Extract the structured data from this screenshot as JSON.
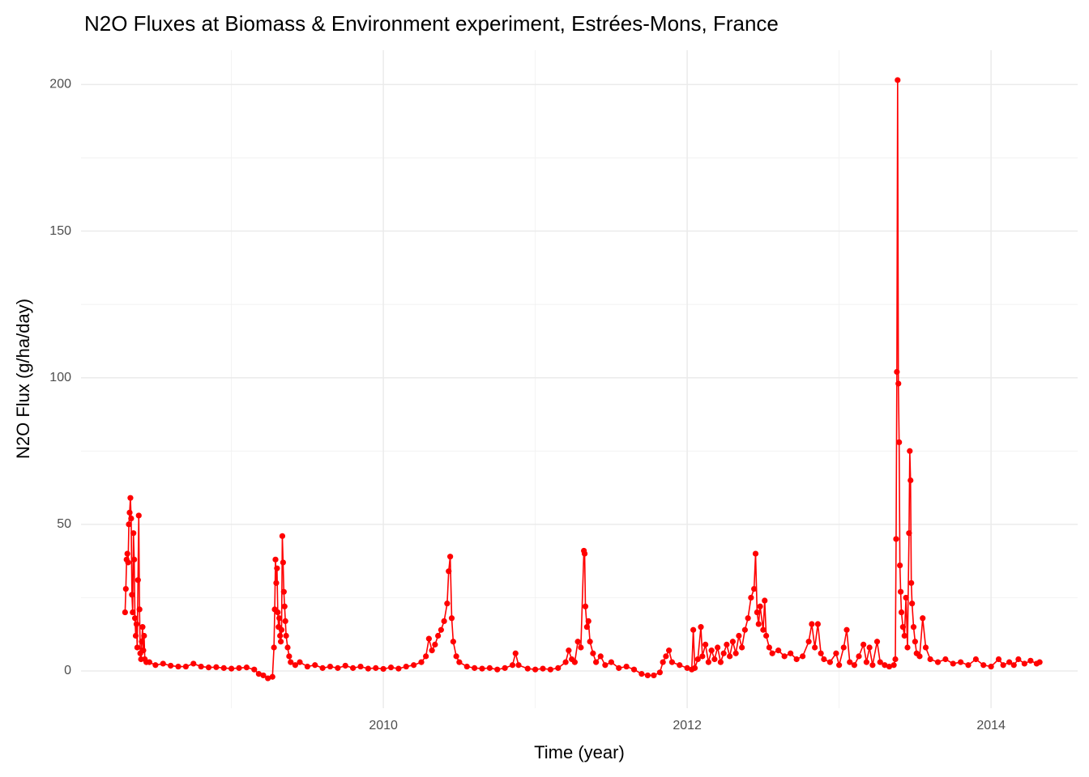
{
  "chart_data": {
    "type": "line",
    "title": "N2O Fluxes at Biomass & Environment experiment, Estrées-Mons, France",
    "x_label": "Time (year)",
    "y_label": "N2O Flux (g/ha/day)",
    "color": "#ff0000",
    "grid": true,
    "xlim": [
      2008.01,
      2014.57
    ],
    "xticks": [
      2010,
      2012,
      2014
    ],
    "ylim": [
      -12.7,
      211.7
    ],
    "yticks": [
      0,
      50,
      100,
      150,
      200
    ],
    "x": [
      2008.3,
      2008.305,
      2008.31,
      2008.315,
      2008.32,
      2008.325,
      2008.33,
      2008.335,
      2008.34,
      2008.345,
      2008.35,
      2008.355,
      2008.36,
      2008.365,
      2008.37,
      2008.375,
      2008.38,
      2008.385,
      2008.39,
      2008.395,
      2008.4,
      2008.405,
      2008.41,
      2008.415,
      2008.42,
      2008.425,
      2008.43,
      2008.44,
      2008.46,
      2008.5,
      2008.55,
      2008.6,
      2008.65,
      2008.7,
      2008.75,
      2008.8,
      2008.85,
      2008.9,
      2008.95,
      2009.0,
      2009.05,
      2009.1,
      2009.15,
      2009.18,
      2009.21,
      2009.24,
      2009.27,
      2009.28,
      2009.285,
      2009.29,
      2009.295,
      2009.3,
      2009.305,
      2009.31,
      2009.315,
      2009.32,
      2009.325,
      2009.33,
      2009.335,
      2009.34,
      2009.345,
      2009.35,
      2009.355,
      2009.36,
      2009.37,
      2009.38,
      2009.39,
      2009.42,
      2009.45,
      2009.5,
      2009.55,
      2009.6,
      2009.65,
      2009.7,
      2009.75,
      2009.8,
      2009.85,
      2009.9,
      2009.95,
      2010.0,
      2010.05,
      2010.1,
      2010.15,
      2010.2,
      2010.25,
      2010.28,
      2010.3,
      2010.32,
      2010.34,
      2010.36,
      2010.38,
      2010.4,
      2010.42,
      2010.43,
      2010.44,
      2010.45,
      2010.46,
      2010.48,
      2010.5,
      2010.55,
      2010.6,
      2010.65,
      2010.7,
      2010.75,
      2010.8,
      2010.85,
      2010.87,
      2010.89,
      2010.95,
      2011.0,
      2011.05,
      2011.1,
      2011.15,
      2011.2,
      2011.22,
      2011.24,
      2011.26,
      2011.28,
      2011.3,
      2011.32,
      2011.325,
      2011.33,
      2011.34,
      2011.35,
      2011.36,
      2011.38,
      2011.4,
      2011.43,
      2011.46,
      2011.5,
      2011.55,
      2011.6,
      2011.65,
      2011.7,
      2011.74,
      2011.78,
      2011.82,
      2011.84,
      2011.86,
      2011.88,
      2011.9,
      2011.95,
      2012.0,
      2012.03,
      2012.04,
      2012.05,
      2012.07,
      2012.09,
      2012.1,
      2012.12,
      2012.14,
      2012.16,
      2012.18,
      2012.2,
      2012.22,
      2012.24,
      2012.26,
      2012.28,
      2012.3,
      2012.32,
      2012.34,
      2012.36,
      2012.38,
      2012.4,
      2012.42,
      2012.44,
      2012.45,
      2012.46,
      2012.47,
      2012.48,
      2012.5,
      2012.51,
      2012.52,
      2012.54,
      2012.56,
      2012.6,
      2012.64,
      2012.68,
      2012.72,
      2012.76,
      2012.8,
      2012.82,
      2012.84,
      2012.86,
      2012.88,
      2012.9,
      2012.94,
      2012.98,
      2013.0,
      2013.03,
      2013.05,
      2013.07,
      2013.1,
      2013.13,
      2013.16,
      2013.18,
      2013.2,
      2013.22,
      2013.25,
      2013.27,
      2013.3,
      2013.33,
      2013.36,
      2013.37,
      2013.375,
      2013.38,
      2013.385,
      2013.39,
      2013.395,
      2013.4,
      2013.405,
      2013.41,
      2013.42,
      2013.43,
      2013.44,
      2013.45,
      2013.46,
      2013.465,
      2013.47,
      2013.475,
      2013.48,
      2013.49,
      2013.5,
      2013.51,
      2013.53,
      2013.55,
      2013.57,
      2013.6,
      2013.65,
      2013.7,
      2013.75,
      2013.8,
      2013.85,
      2013.9,
      2013.95,
      2014.0,
      2014.05,
      2014.08,
      2014.12,
      2014.15,
      2014.18,
      2014.22,
      2014.26,
      2014.3,
      2014.32
    ],
    "values": [
      20,
      28,
      38,
      40,
      37,
      50,
      54,
      59,
      52,
      26,
      20,
      47,
      38,
      18,
      12,
      16,
      8,
      31,
      53,
      21,
      6,
      4,
      10,
      15,
      7,
      12,
      4,
      3,
      3,
      2,
      2.5,
      1.8,
      1.5,
      1.5,
      2.5,
      1.5,
      1.2,
      1.3,
      1,
      0.8,
      1,
      1.2,
      0.5,
      -1,
      -1.5,
      -2.5,
      -2,
      8,
      21,
      38,
      30,
      35,
      20,
      15,
      18,
      12,
      10,
      14,
      46,
      37,
      27,
      22,
      17,
      12,
      8,
      5,
      3,
      2,
      3,
      1.5,
      2,
      1,
      1.5,
      1,
      1.8,
      1,
      1.5,
      0.8,
      1,
      0.7,
      1.2,
      0.8,
      1.5,
      2,
      3,
      5,
      11,
      7,
      9,
      12,
      14,
      17,
      23,
      34,
      39,
      18,
      10,
      5,
      3,
      1.5,
      1,
      0.8,
      1,
      0.5,
      1,
      2,
      6,
      2,
      0.8,
      0.5,
      0.8,
      0.5,
      1,
      3,
      7,
      4,
      3,
      10,
      8,
      41,
      40,
      22,
      15,
      17,
      10,
      6,
      3,
      5,
      2,
      3,
      1,
      1.5,
      0.5,
      -1,
      -1.5,
      -1.5,
      -0.5,
      3,
      5,
      7,
      3,
      2,
      1,
      0.5,
      14,
      1,
      4,
      15,
      5,
      9,
      3,
      7,
      4,
      8,
      3,
      6,
      9,
      5,
      10,
      6,
      12,
      8,
      14,
      18,
      25,
      28,
      40,
      20,
      16,
      22,
      14,
      24,
      12,
      8,
      6,
      7,
      5,
      6,
      4,
      5,
      10,
      16,
      8,
      16,
      6,
      4,
      3,
      6,
      2,
      8,
      14,
      3,
      2,
      5,
      9,
      3,
      8,
      2,
      10,
      3,
      2,
      1.5,
      2,
      4,
      45,
      102,
      201.5,
      98,
      78,
      36,
      27,
      20,
      15,
      12,
      25,
      8,
      47,
      75,
      65,
      30,
      23,
      15,
      10,
      6,
      5,
      18,
      8,
      4,
      3,
      4,
      2.5,
      3,
      2,
      4,
      2,
      1.5,
      4,
      2,
      3,
      2,
      4,
      2.5,
      3.5,
      2.5,
      3
    ]
  }
}
